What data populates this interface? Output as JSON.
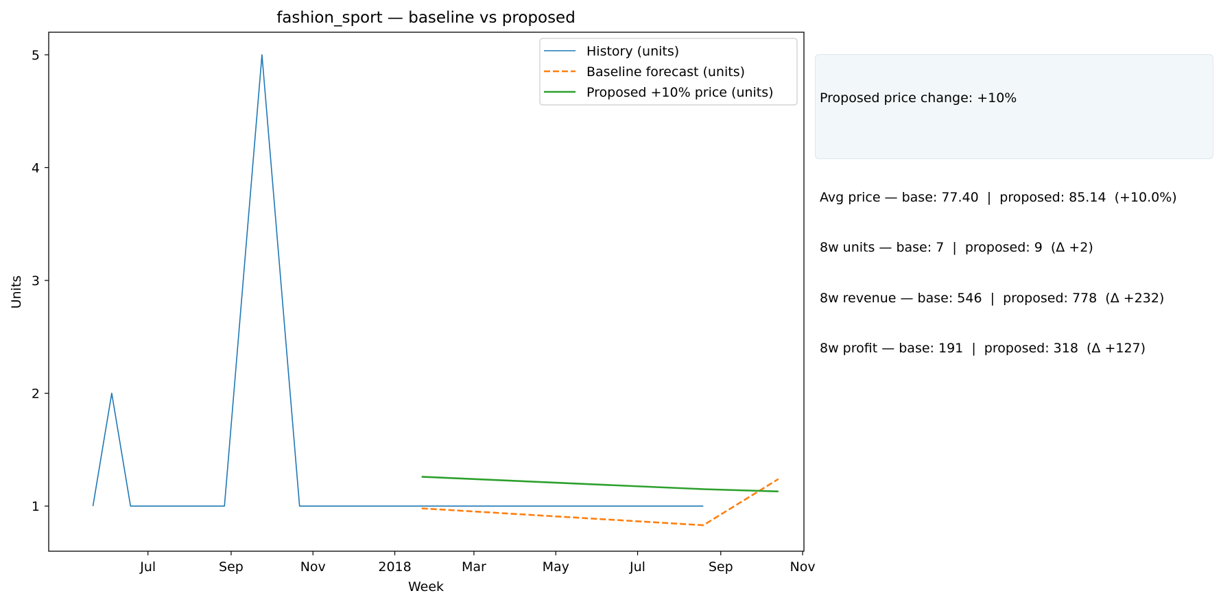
{
  "chart_data": {
    "type": "line",
    "title": "fashion_sport — baseline vs proposed",
    "xlabel": "Week",
    "ylabel": "Units",
    "x_ticks": [
      "Jul",
      "Sep",
      "Nov",
      "2018",
      "Mar",
      "May",
      "Jul",
      "Sep",
      "Nov"
    ],
    "x_tick_dates": [
      "2017-07-01",
      "2017-09-01",
      "2017-11-01",
      "2018-01-01",
      "2018-03-01",
      "2018-05-01",
      "2018-07-01",
      "2018-09-01",
      "2018-11-01"
    ],
    "xlim": [
      "2017-04-18",
      "2018-11-02"
    ],
    "y_ticks": [
      1,
      2,
      3,
      4,
      5
    ],
    "ylim": [
      0.6,
      5.2
    ],
    "grid": false,
    "legend_position": "top-right",
    "series": [
      {
        "name": "History (units)",
        "color": "#1f77b4",
        "style": "solid",
        "x": [
          "2017-05-21",
          "2017-06-04",
          "2017-06-18",
          "2017-08-27",
          "2017-09-24",
          "2017-10-22",
          "2018-08-19"
        ],
        "y": [
          1,
          2,
          1,
          1,
          5,
          1,
          1
        ]
      },
      {
        "name": "Baseline forecast (units)",
        "color": "#ff7f0e",
        "style": "dashed",
        "x": [
          "2018-01-21",
          "2018-08-19",
          "2018-10-14"
        ],
        "y": [
          0.98,
          0.83,
          1.24
        ]
      },
      {
        "name": "Proposed +10% price (units)",
        "color": "#2ca02c",
        "style": "solid",
        "x": [
          "2018-01-21",
          "2018-08-19",
          "2018-10-14"
        ],
        "y": [
          1.26,
          1.15,
          1.13
        ]
      }
    ]
  },
  "info_box": {
    "line1": "Proposed price change: +10%",
    "line2": "Avg price — base: 77.40  |  proposed: 85.14  (+10.0%)",
    "line3": "8w units — base: 7  |  proposed: 9  (Δ +2)",
    "line4": "8w revenue — base: 546  |  proposed: 778  (Δ +232)",
    "line5": "8w profit — base: 191  |  proposed: 318  (Δ +127)"
  }
}
